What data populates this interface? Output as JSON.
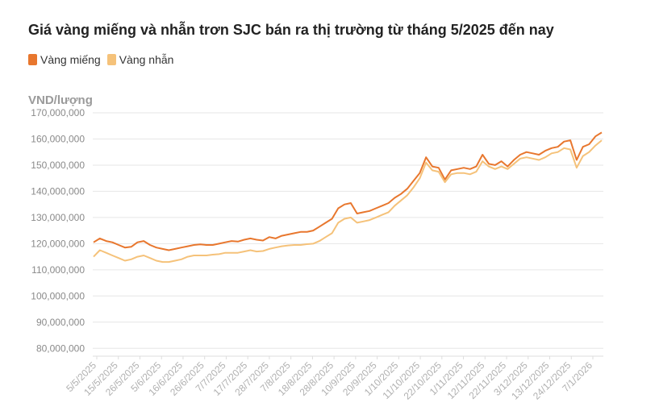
{
  "chart_data": {
    "type": "line",
    "title": "Giá vàng miếng và nhẫn trơn SJC bán ra thị trường từ tháng 5/2025 đến nay",
    "ylabel": "VND/lượng",
    "ylim": [
      77000000,
      170000000
    ],
    "yticks": [
      80000000,
      90000000,
      100000000,
      110000000,
      120000000,
      130000000,
      140000000,
      150000000,
      160000000,
      170000000
    ],
    "ytick_labels": [
      "80,000,000",
      "90,000,000",
      "100,000,000",
      "110,000,000",
      "120,000,000",
      "130,000,000",
      "140,000,000",
      "150,000,000",
      "160,000,000",
      "170,000,000"
    ],
    "xtick_labels": [
      "5/5/2025",
      "15/5/2025",
      "26/5/2025",
      "5/6/2025",
      "16/6/2025",
      "26/6/2025",
      "7/7/2025",
      "17/7/2025",
      "28/7/2025",
      "7/8/2025",
      "18/8/2025",
      "28/8/2025",
      "10/9/2025",
      "20/9/2025",
      "1/10/2025",
      "11/10/2025",
      "22/10/2025",
      "1/11/2025",
      "12/11/2025",
      "22/11/2025",
      "3/12/2025",
      "13/12/2025",
      "24/12/2025",
      "7/1/2026"
    ],
    "grid": true,
    "legend": "top-left",
    "series": [
      {
        "name": "Vàng miếng",
        "color": "#e8772e",
        "values": [
          120500000,
          122000000,
          121000000,
          120500000,
          119500000,
          118500000,
          118800000,
          120500000,
          121000000,
          119500000,
          118500000,
          118000000,
          117500000,
          118000000,
          118500000,
          119000000,
          119500000,
          119700000,
          119500000,
          119500000,
          120000000,
          120500000,
          121000000,
          120800000,
          121500000,
          122000000,
          121500000,
          121200000,
          122500000,
          122000000,
          123000000,
          123500000,
          124000000,
          124500000,
          124500000,
          125000000,
          126500000,
          128000000,
          129500000,
          133500000,
          135000000,
          135500000,
          131500000,
          132000000,
          132500000,
          133500000,
          134500000,
          135500000,
          137500000,
          139000000,
          141000000,
          144000000,
          147000000,
          153000000,
          149500000,
          149000000,
          144500000,
          148000000,
          148500000,
          149000000,
          148500000,
          149500000,
          154000000,
          150500000,
          150000000,
          151500000,
          149500000,
          152000000,
          154000000,
          155000000,
          154500000,
          154000000,
          155500000,
          156500000,
          157000000,
          159000000,
          159500000,
          152000000,
          157000000,
          158000000,
          161000000,
          162500000
        ]
      },
      {
        "name": "Vàng nhẫn",
        "color": "#f5c27a",
        "values": [
          115000000,
          117500000,
          116500000,
          115500000,
          114500000,
          113500000,
          114000000,
          115000000,
          115500000,
          114500000,
          113500000,
          113000000,
          113000000,
          113500000,
          114000000,
          115000000,
          115500000,
          115500000,
          115500000,
          115800000,
          116000000,
          116500000,
          116500000,
          116500000,
          117000000,
          117500000,
          117000000,
          117200000,
          118000000,
          118500000,
          119000000,
          119300000,
          119500000,
          119500000,
          119800000,
          120000000,
          121000000,
          122500000,
          124000000,
          128000000,
          129500000,
          130000000,
          128000000,
          128500000,
          129000000,
          130000000,
          131000000,
          132000000,
          134500000,
          136500000,
          138500000,
          141500000,
          145000000,
          151000000,
          148000000,
          147500000,
          143500000,
          146500000,
          147000000,
          147000000,
          146500000,
          147500000,
          151500000,
          149500000,
          148500000,
          149500000,
          148500000,
          150500000,
          152500000,
          153000000,
          152500000,
          152000000,
          153000000,
          154500000,
          155000000,
          156500000,
          156000000,
          149000000,
          153500000,
          155000000,
          157500000,
          159500000
        ]
      }
    ]
  }
}
